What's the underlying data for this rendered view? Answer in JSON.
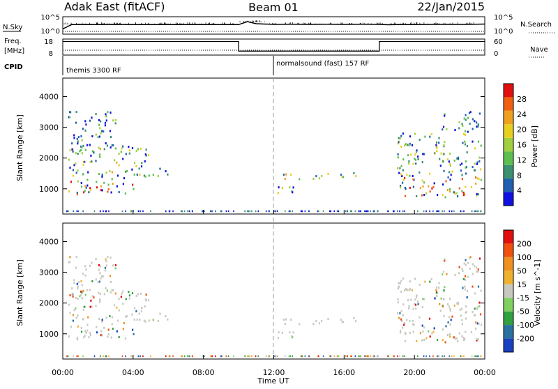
{
  "header": {
    "left": "Adak East (fitACF)",
    "center": "Beam 01",
    "right": "22/Jan/2015"
  },
  "side_labels": {
    "nsky": "N.Sky",
    "freq": "Freq.",
    "freq_unit": "[MHz]",
    "cpid": "CPID",
    "nsearch": "N.Search",
    "nave": "Nave"
  },
  "cpid_labels": {
    "first": "themis 3300 RF",
    "second": "normalsound (fast) 157 RF"
  },
  "colors": {
    "power": [
      "#1010e0",
      "#2060b0",
      "#3a9070",
      "#5cbf50",
      "#a0d040",
      "#e8d020",
      "#f0a020",
      "#f06010",
      "#e01010"
    ],
    "velocity": [
      "#e01010",
      "#f05010",
      "#f09020",
      "#f0b030",
      "#c8c8c0",
      "#80d060",
      "#30a040",
      "#2a70a0",
      "#1a40c0"
    ]
  },
  "chart_data": [
    {
      "type": "line",
      "title": "N.Sky / N.Search",
      "yticks_left": [
        "10^5",
        "10^0"
      ],
      "yticks_right": [
        "10^5",
        "10^0"
      ],
      "x_hours": [
        0,
        0.5,
        1,
        2,
        3,
        4,
        5,
        6,
        7,
        8,
        9,
        10,
        10.5,
        11,
        12,
        13,
        14,
        15,
        16,
        17,
        18,
        18.5,
        19,
        20,
        21,
        22,
        23,
        24
      ],
      "series": [
        {
          "name": "N.Sky",
          "values": [
            0.3,
            0.55,
            0.55,
            0.55,
            0.56,
            0.55,
            0.55,
            0.55,
            0.55,
            0.55,
            0.55,
            0.55,
            0.72,
            0.6,
            0.56,
            0.57,
            0.56,
            0.57,
            0.56,
            0.57,
            0.56,
            0.54,
            0.55,
            0.55,
            0.56,
            0.56,
            0.56,
            0.58
          ]
        }
      ]
    },
    {
      "type": "line",
      "title": "Freq. / Nave",
      "yticks_left": [
        "18",
        "8"
      ],
      "yticks_right": [
        "60",
        "0"
      ],
      "segments": [
        {
          "from_hour": 0,
          "to_hour": 10,
          "freq_level": 0.85
        },
        {
          "from_hour": 10,
          "to_hour": 18,
          "freq_level": 0.25
        },
        {
          "from_hour": 18,
          "to_hour": 24,
          "freq_level": 0.85
        }
      ]
    },
    {
      "type": "heatmap",
      "ylabel": "Slant Range [km]",
      "yticks": [
        1000,
        2000,
        3000,
        4000
      ],
      "ylim": [
        180,
        4600
      ],
      "colorbar_label": "Power [dB]",
      "colorbar_ticks": [
        4,
        8,
        12,
        16,
        20,
        24,
        28
      ],
      "clim": [
        0,
        30
      ]
    },
    {
      "type": "heatmap",
      "ylabel": "Slant Range [km]",
      "yticks": [
        1000,
        2000,
        3000,
        4000
      ],
      "ylim": [
        180,
        4600
      ],
      "colorbar_label": "Velocity [m s^-1]",
      "colorbar_ticks": [
        200,
        100,
        50,
        15,
        -15,
        -50,
        -100,
        -200
      ],
      "xlabel": "Time UT",
      "xticks": [
        "00:00",
        "04:00",
        "08:00",
        "12:00",
        "16:00",
        "20:00",
        "00:00"
      ],
      "xlim_hours": [
        0,
        24
      ]
    }
  ]
}
